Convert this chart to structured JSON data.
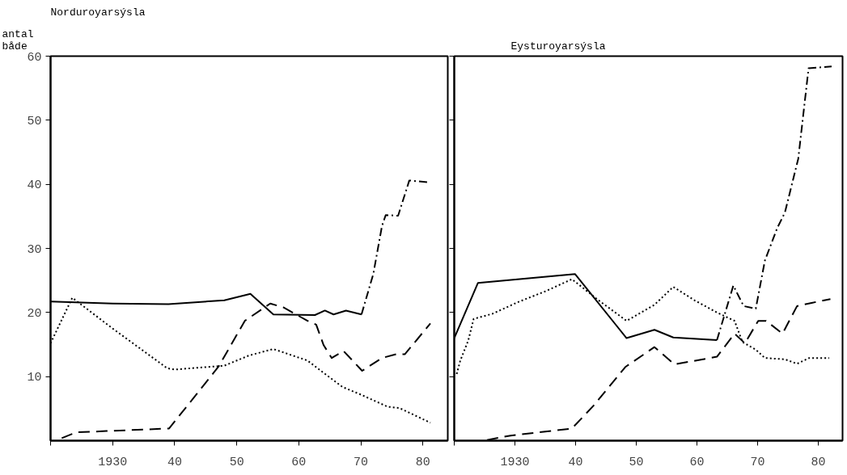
{
  "chart_data": [
    {
      "type": "line",
      "title": "Norduroyarsýsla",
      "ylabel": "antal\nbåde",
      "xlim": [
        1920,
        1984
      ],
      "ylim": [
        0,
        60
      ],
      "xticks": [
        {
          "value": 1920,
          "label": null
        },
        1930,
        {
          "value": 1940,
          "label": "40"
        },
        {
          "value": 1950,
          "label": "50"
        },
        {
          "value": 1960,
          "label": "60"
        },
        {
          "value": 1970,
          "label": "70"
        },
        {
          "value": 1980,
          "label": "80"
        }
      ],
      "yticks": [
        10,
        20,
        30,
        40,
        50,
        60
      ],
      "grid": false,
      "series": [
        {
          "color": "#000000",
          "line_style": "solid",
          "x": [
            1920,
            1930,
            1939,
            1948,
            1952.2,
            1955.9,
            1962.6,
            1964.2,
            1965.6,
            1967.6,
            1970.1
          ],
          "values": [
            21.7,
            21.4,
            21.3,
            21.9,
            22.9,
            19.7,
            19.6,
            20.3,
            19.7,
            20.3,
            19.7
          ]
        },
        {
          "color": "#000000",
          "line_style": "dotted",
          "x": [
            1920,
            1923.5,
            1930,
            1938.8,
            1940,
            1948,
            1952,
            1955.9,
            1961.4,
            1963.7,
            1967,
            1970.2,
            1974.3,
            1976.2,
            1981.2
          ],
          "values": [
            15.2,
            22.3,
            17.5,
            11.3,
            11.1,
            11.7,
            13.3,
            14.3,
            12.5,
            10.8,
            8.4,
            7.1,
            5.3,
            5.1,
            2.8
          ]
        },
        {
          "color": "#000000",
          "line_style": "dashed",
          "x": [
            1921.8,
            1924.1,
            1929,
            1939.1,
            1947.1,
            1951.3,
            1955.4,
            1957.5,
            1961.4,
            1962.8,
            1964,
            1965.3,
            1967.2,
            1970.2,
            1973.4,
            1975.7,
            1977.1,
            1981.2
          ],
          "values": [
            0.4,
            1.3,
            1.5,
            1.9,
            11.6,
            18.7,
            21.4,
            20.8,
            18.7,
            18.1,
            14.9,
            12.9,
            14,
            10.9,
            12.9,
            13.5,
            13.5,
            18.3
          ]
        },
        {
          "color": "#000000",
          "line_style": "dashdot",
          "x": [
            1970.1,
            1972,
            1973.4,
            1974,
            1976,
            1977.8,
            1981
          ],
          "values": [
            19.7,
            26,
            33.5,
            35.2,
            35.1,
            40.6,
            40.3
          ]
        }
      ]
    },
    {
      "type": "line",
      "title": "Eysturoyarsýsla",
      "xlim": [
        1920,
        1984
      ],
      "ylim": [
        0,
        60
      ],
      "tick_labels": "x",
      "xticks": [
        {
          "value": 1920,
          "label": null
        },
        1930,
        {
          "value": 1940,
          "label": "40"
        },
        {
          "value": 1950,
          "label": "50"
        },
        {
          "value": 1960,
          "label": "60"
        },
        {
          "value": 1970,
          "label": "70"
        },
        {
          "value": 1980,
          "label": "80"
        }
      ],
      "yticks": [
        10,
        20,
        30,
        40,
        50,
        60
      ],
      "grid": false,
      "series": [
        {
          "color": "#000000",
          "line_style": "solid",
          "x": [
            1920,
            1923.9,
            1939.9,
            1948.4,
            1953,
            1956.1,
            1963.3
          ],
          "values": [
            16.0,
            24.6,
            26.0,
            16.0,
            17.3,
            16.1,
            15.7
          ]
        },
        {
          "color": "#000000",
          "line_style": "dotted",
          "x": [
            1920.4,
            1921,
            1922.3,
            1923.2,
            1926.3,
            1930.7,
            1935,
            1939.4,
            1943.8,
            1948.4,
            1953,
            1956.1,
            1959.6,
            1963.3,
            1966.2,
            1967.5,
            1969.7,
            1971.2,
            1974.5,
            1976.5,
            1978.5,
            1981.8
          ],
          "values": [
            10.4,
            12.5,
            15.6,
            19.0,
            19.8,
            21.7,
            23.3,
            25.2,
            21.9,
            18.7,
            21.2,
            24,
            21.9,
            20,
            18.7,
            15.4,
            14.2,
            12.9,
            12.7,
            12,
            12.9,
            12.9
          ]
        },
        {
          "color": "#000000",
          "line_style": "dashed",
          "x": [
            1925.4,
            1929.3,
            1939.4,
            1942.9,
            1948.2,
            1953,
            1956.3,
            1963.3,
            1966.2,
            1967.9,
            1970.1,
            1971.4,
            1974.1,
            1976.5,
            1978.9,
            1982
          ],
          "values": [
            0.1,
            0.8,
            1.9,
            5.4,
            11.5,
            14.6,
            11.9,
            13.1,
            16.7,
            15.2,
            18.7,
            18.7,
            16.7,
            21,
            21.5,
            22.1
          ]
        },
        {
          "color": "#000000",
          "line_style": "dashdot",
          "x": [
            1963.3,
            1966,
            1967.7,
            1969.7,
            1971.2,
            1973.2,
            1974.5,
            1976.7,
            1978.4,
            1982.2
          ],
          "values": [
            15.7,
            24.2,
            21,
            20.6,
            28.1,
            33.1,
            35.6,
            44,
            58.1,
            58.4
          ]
        }
      ]
    }
  ]
}
